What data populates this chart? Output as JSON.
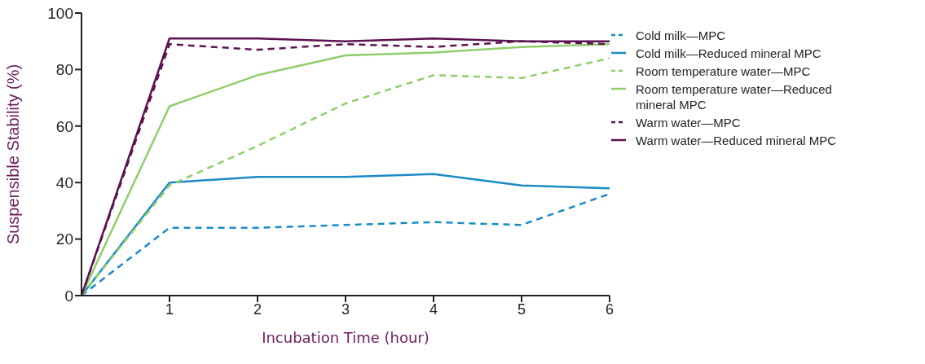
{
  "chart_data": {
    "type": "line",
    "xlabel": "Incubation Time (hour)",
    "ylabel": "Suspensible Stability (%)",
    "x": [
      0,
      1,
      2,
      3,
      4,
      5,
      6
    ],
    "xlim": [
      0,
      6
    ],
    "xticks": [
      1,
      2,
      3,
      4,
      5,
      6
    ],
    "ylim": [
      0,
      100
    ],
    "yticks": [
      0,
      20,
      40,
      60,
      80,
      100
    ],
    "grid": false,
    "legend": "right",
    "marker": "none",
    "series": [
      {
        "name": "Cold milk—MPC",
        "color": "#1a8bc4",
        "line_style": "dashed",
        "values": [
          0,
          24,
          24,
          25,
          26,
          25,
          36
        ]
      },
      {
        "name": "Cold milk—Reduced mineral MPC",
        "color": "#1a8bc4",
        "line_style": "solid",
        "values": [
          0,
          40,
          42,
          42,
          43,
          39,
          38
        ]
      },
      {
        "name": "Room temperature water—MPC",
        "color": "#8fce6a",
        "line_style": "dashed",
        "values": [
          0,
          39,
          53,
          68,
          78,
          77,
          84
        ]
      },
      {
        "name": "Room temperature water—Reduced mineral MPC",
        "color": "#8fce6a",
        "line_style": "solid",
        "values": [
          0,
          67,
          78,
          85,
          86,
          88,
          89
        ]
      },
      {
        "name": "Warm water—MPC",
        "color": "#5c1150",
        "line_style": "dashed",
        "values": [
          0,
          89,
          87,
          89,
          88,
          90,
          89
        ]
      },
      {
        "name": "Warm water—Reduced mineral MPC",
        "color": "#5c1150",
        "line_style": "solid",
        "values": [
          0,
          91,
          91,
          90,
          91,
          90,
          90
        ]
      }
    ]
  }
}
